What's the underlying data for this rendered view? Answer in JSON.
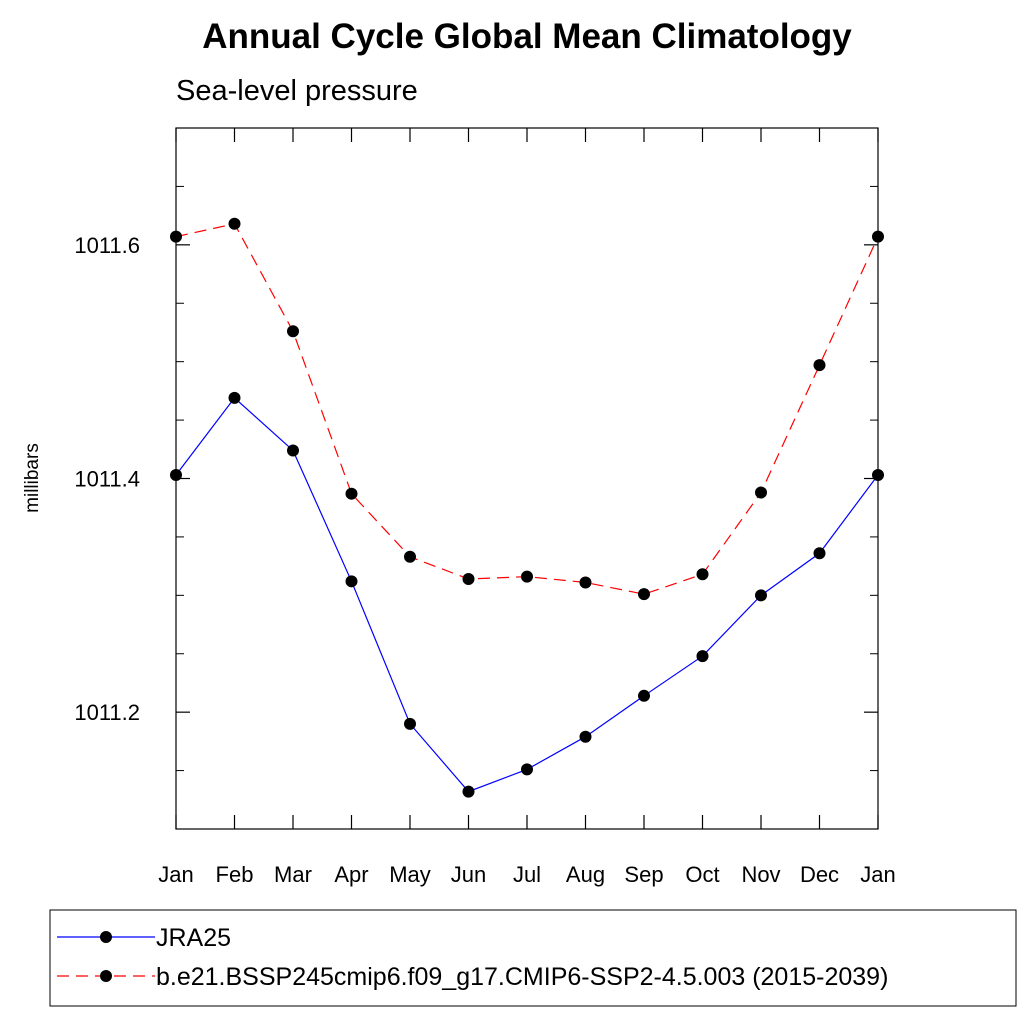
{
  "chart_data": {
    "type": "line",
    "title": "Annual Cycle Global Mean Climatology",
    "subtitle": "Sea-level pressure",
    "xlabel": "",
    "ylabel": "millibars",
    "categories": [
      "Jan",
      "Feb",
      "Mar",
      "Apr",
      "May",
      "Jun",
      "Jul",
      "Aug",
      "Sep",
      "Oct",
      "Nov",
      "Dec",
      "Jan"
    ],
    "ylim": [
      1011.1,
      1011.7
    ],
    "yticks": [
      "1011.2",
      "1011.4",
      "1011.6"
    ],
    "ytick_values": [
      1011.2,
      1011.4,
      1011.6
    ],
    "y_minor_step": 0.05,
    "grid": false,
    "legend_position": "bottom",
    "series": [
      {
        "name": "JRA25",
        "color": "#0000ff",
        "dash": "solid",
        "marker": "filled-circle",
        "values": [
          1011.403,
          1011.469,
          1011.424,
          1011.312,
          1011.19,
          1011.132,
          1011.151,
          1011.179,
          1011.214,
          1011.248,
          1011.3,
          1011.336,
          1011.403
        ]
      },
      {
        "name": "b.e21.BSSP245cmip6.f09_g17.CMIP6-SSP2-4.5.003 (2015-2039)",
        "color": "#ff0000",
        "dash": "dashed",
        "marker": "filled-circle",
        "values": [
          1011.607,
          1011.618,
          1011.526,
          1011.387,
          1011.333,
          1011.314,
          1011.316,
          1011.311,
          1011.301,
          1011.318,
          1011.388,
          1011.497,
          1011.607
        ]
      }
    ]
  }
}
